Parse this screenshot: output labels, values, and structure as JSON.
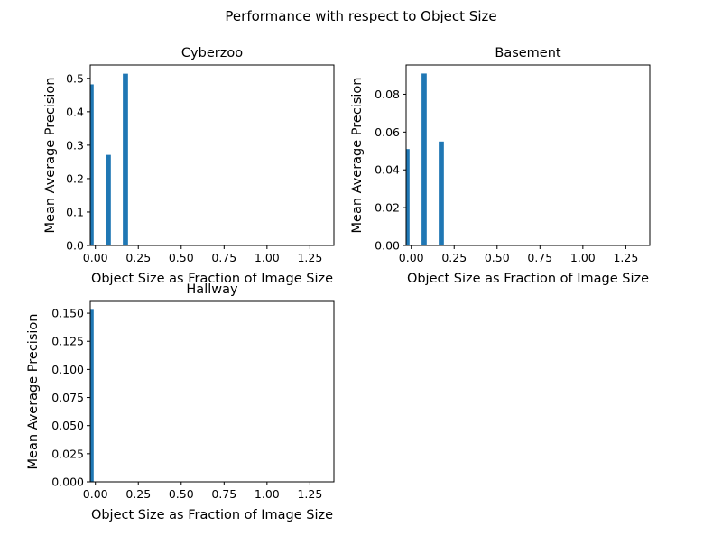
{
  "figure": {
    "title": "Performance with respect to Object Size"
  },
  "colors": {
    "bar": "#1f77b4",
    "frame": "#000000",
    "background": "#ffffff"
  },
  "chart_data": [
    {
      "type": "bar",
      "title": "Cyberzoo",
      "xlabel": "Object Size as Fraction of Image Size",
      "ylabel": "Mean Average Precision",
      "x": [
        -0.025,
        0.075,
        0.175
      ],
      "values": [
        0.482,
        0.271,
        0.514
      ],
      "bar_width": 0.03,
      "xlim": [
        -0.03,
        1.39
      ],
      "ylim": [
        0,
        0.54
      ],
      "xticks": [
        0.0,
        0.25,
        0.5,
        0.75,
        1.0,
        1.25
      ],
      "xtick_labels": [
        "0.00",
        "0.25",
        "0.50",
        "0.75",
        "1.00",
        "1.25"
      ],
      "yticks": [
        0.0,
        0.1,
        0.2,
        0.3,
        0.4,
        0.5
      ],
      "ytick_labels": [
        "0.0",
        "0.1",
        "0.2",
        "0.3",
        "0.4",
        "0.5"
      ],
      "grid": false
    },
    {
      "type": "bar",
      "title": "Basement",
      "xlabel": "Object Size as Fraction of Image Size",
      "ylabel": "Mean Average Precision",
      "x": [
        -0.025,
        0.075,
        0.175
      ],
      "values": [
        0.051,
        0.091,
        0.055
      ],
      "bar_width": 0.03,
      "xlim": [
        -0.03,
        1.39
      ],
      "ylim": [
        0,
        0.0955
      ],
      "xticks": [
        0.0,
        0.25,
        0.5,
        0.75,
        1.0,
        1.25
      ],
      "xtick_labels": [
        "0.00",
        "0.25",
        "0.50",
        "0.75",
        "1.00",
        "1.25"
      ],
      "yticks": [
        0.0,
        0.02,
        0.04,
        0.06,
        0.08
      ],
      "ytick_labels": [
        "0.00",
        "0.02",
        "0.04",
        "0.06",
        "0.08"
      ],
      "grid": false
    },
    {
      "type": "bar",
      "title": "Hallway",
      "xlabel": "Object Size as Fraction of Image Size",
      "ylabel": "Mean Average Precision",
      "x": [
        -0.025
      ],
      "values": [
        0.153
      ],
      "bar_width": 0.03,
      "xlim": [
        -0.03,
        1.39
      ],
      "ylim": [
        0,
        0.1605
      ],
      "xticks": [
        0.0,
        0.25,
        0.5,
        0.75,
        1.0,
        1.25
      ],
      "xtick_labels": [
        "0.00",
        "0.25",
        "0.50",
        "0.75",
        "1.00",
        "1.25"
      ],
      "yticks": [
        0.0,
        0.025,
        0.05,
        0.075,
        0.1,
        0.125,
        0.15
      ],
      "ytick_labels": [
        "0.000",
        "0.025",
        "0.050",
        "0.075",
        "0.100",
        "0.125",
        "0.150"
      ],
      "grid": false
    }
  ]
}
